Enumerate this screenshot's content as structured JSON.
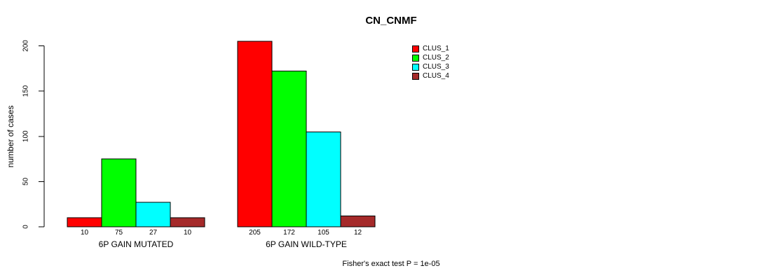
{
  "chart_data": {
    "type": "bar",
    "title": "CN_CNMF",
    "xlabel": "",
    "ylabel": "number of cases",
    "ylim": [
      0,
      205
    ],
    "yticks": [
      0,
      50,
      100,
      150,
      200
    ],
    "grid": false,
    "legend_position": "top-right-outside",
    "categories": [
      "6P GAIN MUTATED",
      "6P GAIN WILD-TYPE"
    ],
    "series": [
      {
        "name": "CLUS_1",
        "color": "#FF0000",
        "values": [
          10,
          205
        ]
      },
      {
        "name": "CLUS_2",
        "color": "#00FF00",
        "values": [
          75,
          172
        ]
      },
      {
        "name": "CLUS_3",
        "color": "#00FFFF",
        "values": [
          27,
          105
        ]
      },
      {
        "name": "CLUS_4",
        "color": "#A52A2A",
        "values": [
          10,
          12
        ]
      }
    ],
    "bar_value_labels": [
      [
        "10",
        "75",
        "27",
        "10"
      ],
      [
        "205",
        "172",
        "105",
        "12"
      ]
    ],
    "annotation": "Fisher's exact test P = 1e-05"
  },
  "colors": {
    "background": "#FFFFFF",
    "axis": "#000000",
    "bar_border": "#000000",
    "text": "#000000"
  }
}
